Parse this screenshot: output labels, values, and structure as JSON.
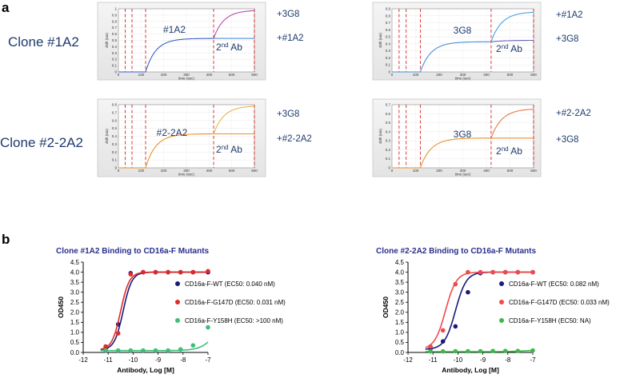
{
  "panel_a": {
    "letter": "a",
    "plots": [
      {
        "clone_label": "Clone #1A2",
        "inside_label": "#1A2",
        "second_ab": "2",
        "second_ab_sup": "nd",
        "second_ab_rest": " Ab",
        "top_label": "+3G8",
        "bottom_label": "+#1A2",
        "top_color": "#b44dab",
        "bottom_color": "#4a8fd8",
        "base_color": "#3a5fc8",
        "y_label": "shift (nm)",
        "x_label": "time (sec)",
        "y_ticks": [
          "0",
          "0.1",
          "0.2",
          "0.3",
          "0.4",
          "0.5",
          "0.6",
          "0.7",
          "0.8",
          "0.9",
          "1"
        ],
        "x_ticks": [
          "0",
          "100",
          "200",
          "300",
          "400",
          "500",
          "600"
        ],
        "ymax": 1.0,
        "plateau": 0.53,
        "top_end": 0.97,
        "bottom_end": 0.53
      },
      {
        "clone_label": "",
        "inside_label": "3G8",
        "second_ab": "2",
        "second_ab_sup": "nd",
        "second_ab_rest": " Ab",
        "top_label": "+#1A2",
        "bottom_label": "+3G8",
        "top_color": "#4a9fe0",
        "bottom_color": "#6b5fb8",
        "base_color": "#4a8fd8",
        "y_label": "shift (nm)",
        "x_label": "time (sec)",
        "y_ticks": [
          "0",
          "0.1",
          "0.2",
          "0.3",
          "0.4",
          "0.5",
          "0.6",
          "0.7",
          "0.8",
          "0.9"
        ],
        "x_ticks": [
          "0",
          "100",
          "200",
          "300",
          "400",
          "500",
          "600"
        ],
        "ymax": 0.9,
        "plateau": 0.43,
        "top_end": 0.85,
        "bottom_end": 0.45
      },
      {
        "clone_label": "Clone #2-2A2",
        "inside_label": "#2-2A2",
        "second_ab": "2",
        "second_ab_sup": "nd",
        "second_ab_rest": " Ab",
        "top_label": "+3G8",
        "bottom_label": "+#2-2A2",
        "top_color": "#f0b24a",
        "bottom_color": "#e8932a",
        "base_color": "#e8932a",
        "y_label": "shift (nm)",
        "x_label": "time (sec)",
        "y_ticks": [
          "0",
          "0.1",
          "0.2",
          "0.3",
          "0.4",
          "0.5",
          "0.6",
          "0.7",
          "0.8"
        ],
        "x_ticks": [
          "0",
          "100",
          "200",
          "300",
          "400",
          "500",
          "600"
        ],
        "ymax": 0.8,
        "plateau": 0.43,
        "top_end": 0.78,
        "bottom_end": 0.43
      },
      {
        "clone_label": "",
        "inside_label": "3G8",
        "second_ab": "2",
        "second_ab_sup": "nd",
        "second_ab_rest": " Ab",
        "top_label": "+#2-2A2",
        "bottom_label": "+3G8",
        "top_color": "#e8774a",
        "bottom_color": "#e8932a",
        "base_color": "#e8932a",
        "y_label": "shift (nm)",
        "x_label": "time (sec)",
        "y_ticks": [
          "0",
          "0.1",
          "0.2",
          "0.3",
          "0.4",
          "0.5",
          "0.6",
          "0.7"
        ],
        "x_ticks": [
          "0",
          "100",
          "200",
          "300",
          "400",
          "500",
          "600"
        ],
        "ymax": 0.7,
        "plateau": 0.33,
        "top_end": 0.65,
        "bottom_end": 0.33
      }
    ]
  },
  "panel_b": {
    "letter": "b"
  },
  "chart_data": [
    {
      "type": "scatter",
      "title": "Clone #1A2 Binding to CD16a-F Mutants",
      "xlabel": "Antibody, Log [M]",
      "ylabel": "OD450",
      "xlim": [
        -12,
        -7
      ],
      "ylim": [
        0,
        4.5
      ],
      "x_ticks": [
        "-12",
        "-11",
        "-10",
        "-9",
        "-8",
        "-7"
      ],
      "y_ticks": [
        "0.0",
        "0.5",
        "1.0",
        "1.5",
        "2.0",
        "2.5",
        "3.0",
        "3.5",
        "4.0",
        "4.5"
      ],
      "x": [
        -11.1,
        -10.6,
        -10.1,
        -9.6,
        -9.1,
        -8.6,
        -8.1,
        -7.6,
        -7.0
      ],
      "series": [
        {
          "name": "CD16a-F-WT (EC50: 0.040 nM)",
          "color": "#1a1a7a",
          "values": [
            0.2,
            1.4,
            3.95,
            4.0,
            4.0,
            4.0,
            4.0,
            4.0,
            4.0
          ],
          "fit": {
            "bottom": 0.12,
            "top": 4.0,
            "logec50": -10.4,
            "hill": 2.5
          }
        },
        {
          "name": "CD16a-F-G147D (EC50: 0.031 nM)",
          "color": "#dd2a2a",
          "values": [
            0.3,
            0.95,
            3.9,
            4.0,
            4.0,
            4.0,
            4.0,
            4.0,
            4.05
          ],
          "fit": {
            "bottom": 0.12,
            "top": 4.0,
            "logec50": -10.5,
            "hill": 2.5
          }
        },
        {
          "name": "CD16a-F-Y158H (EC50: >100 nM)",
          "color": "#3dbf7a",
          "values": [
            0.1,
            0.1,
            0.1,
            0.1,
            0.1,
            0.1,
            0.15,
            0.35,
            1.25
          ],
          "fit": {
            "bottom": 0.09,
            "top": 4.0,
            "logec50": -6.3,
            "hill": 1.3
          }
        }
      ]
    },
    {
      "type": "scatter",
      "title": "Clone #2-2A2 Binding to CD16a-F Mutants",
      "xlabel": "Antibody, Log [M]",
      "ylabel": "OD450",
      "xlim": [
        -12,
        -7
      ],
      "ylim": [
        0,
        4.5
      ],
      "x_ticks": [
        "-12",
        "-11",
        "-10",
        "-9",
        "-8",
        "-7"
      ],
      "y_ticks": [
        "0.0",
        "0.5",
        "1.0",
        "1.5",
        "2.0",
        "2.5",
        "3.0",
        "3.5",
        "4.0",
        "4.5"
      ],
      "x": [
        -11.1,
        -10.6,
        -10.1,
        -9.6,
        -9.1,
        -8.6,
        -8.1,
        -7.6,
        -7.0
      ],
      "series": [
        {
          "name": "CD16a-F-WT (EC50: 0.082 nM)",
          "color": "#1a1a7a",
          "values": [
            0.2,
            0.55,
            1.3,
            3.0,
            3.95,
            4.0,
            4.0,
            4.0,
            4.0
          ],
          "fit": {
            "bottom": 0.15,
            "top": 4.0,
            "logec50": -10.1,
            "hill": 2.0
          }
        },
        {
          "name": "CD16a-F-G147D (EC50: 0.033 nM)",
          "color": "#f04a4a",
          "values": [
            0.3,
            1.1,
            3.4,
            4.0,
            4.0,
            4.0,
            4.0,
            4.0,
            4.0
          ],
          "fit": {
            "bottom": 0.15,
            "top": 4.0,
            "logec50": -10.5,
            "hill": 2.0
          }
        },
        {
          "name": "CD16a-F-Y158H (EC50: NA)",
          "color": "#3db84a",
          "values": [
            0.05,
            0.05,
            0.06,
            0.06,
            0.06,
            0.07,
            0.07,
            0.07,
            0.1
          ],
          "fit": {
            "bottom": 0.04,
            "top": 0.12,
            "logec50": -7.3,
            "hill": 1.5
          }
        }
      ]
    }
  ]
}
